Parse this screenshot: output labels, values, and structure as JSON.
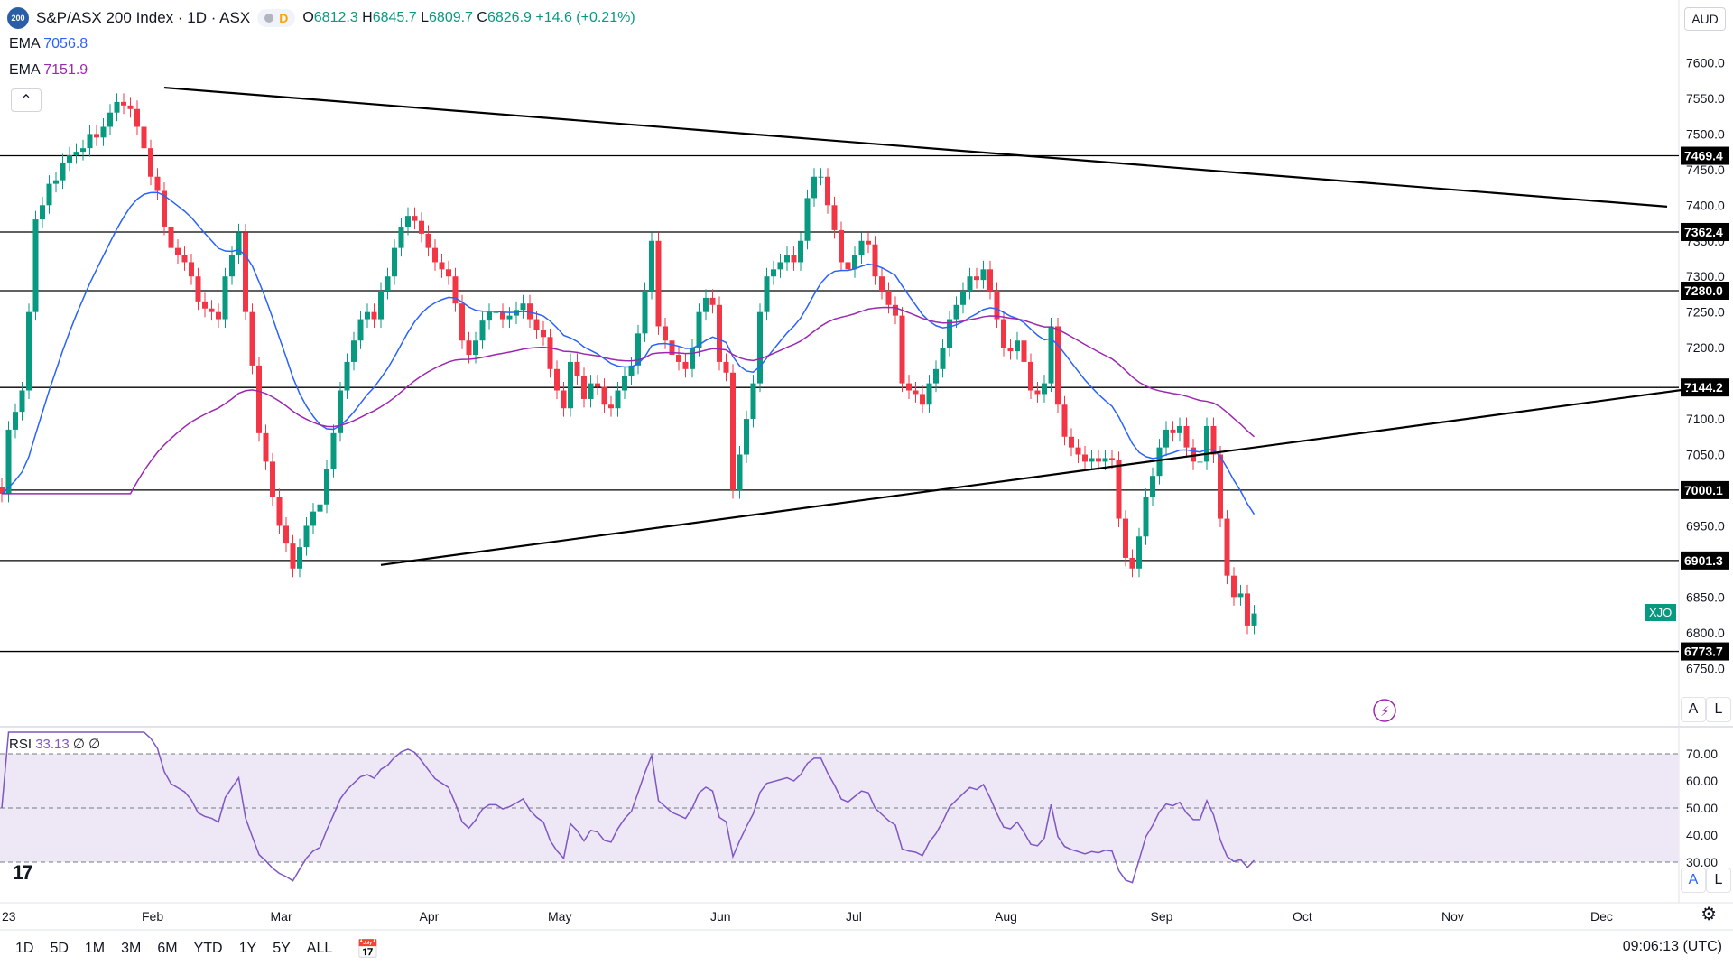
{
  "header": {
    "logo_text": "200",
    "symbol": "S&P/ASX 200 Index · 1D · ASX",
    "pill_letter": "D",
    "ohlc": {
      "o": "6812.3",
      "h": "6845.7",
      "l": "6809.7",
      "c": "6826.9",
      "chg": "+14.6 (+0.21%)"
    },
    "ema1_label": "EMA",
    "ema1_value": "7056.8",
    "ema2_label": "EMA",
    "ema2_value": "7151.9",
    "collapse_icon": "chevron-up-icon"
  },
  "currency": "AUD",
  "last_tag": "XJO",
  "colors": {
    "up": "#089981",
    "down": "#f23645",
    "ema_fast": "#2962ff",
    "ema_slow": "#9c27b0",
    "rsi": "#7e57c2",
    "rsi_band": "#ede7f6"
  },
  "rsi": {
    "label": "RSI",
    "value": "33.13",
    "extra": "∅ ∅"
  },
  "bottom": {
    "timeframes": [
      "1D",
      "5D",
      "1M",
      "3M",
      "6M",
      "YTD",
      "1Y",
      "5Y",
      "ALL"
    ],
    "clock": "09:06:13 (UTC)",
    "scale_a": "A",
    "scale_l": "L"
  },
  "chart_data": {
    "type": "candlestick",
    "title": "S&P/ASX 200 Index · 1D · ASX",
    "ylim": [
      6725,
      7650
    ],
    "y_ticks": [
      6750,
      6800,
      6850,
      6900,
      6950,
      7000,
      7050,
      7100,
      7150,
      7200,
      7250,
      7300,
      7350,
      7400,
      7450,
      7500,
      7550,
      7600
    ],
    "y_tick_labels": [
      "6750.0",
      "6800.0",
      "6850.0",
      "6900.0",
      "6950.0",
      "7000.0",
      "7050.0",
      "7100.0",
      "7150.0",
      "7200.0",
      "7250.0",
      "7300.0",
      "7350.0",
      "7400.0",
      "7450.0",
      "7500.0",
      "7550.0",
      "7600.0"
    ],
    "x_labels": [
      "23",
      "Feb",
      "Mar",
      "Apr",
      "May",
      "Jun",
      "Jul",
      "Aug",
      "Sep",
      "Oct",
      "Nov",
      "Dec"
    ],
    "x_label_index": [
      0,
      22,
      41,
      63,
      82,
      106,
      126,
      148,
      171,
      192,
      214,
      236
    ],
    "horizontal_levels": [
      {
        "value": 7469.4,
        "label": "7469.4"
      },
      {
        "value": 7362.4,
        "label": "7362.4"
      },
      {
        "value": 7280.0,
        "label": "7280.0"
      },
      {
        "value": 7144.2,
        "label": "7144.2"
      },
      {
        "value": 7000.1,
        "label": "7000.1"
      },
      {
        "value": 6901.3,
        "label": "6901.3"
      },
      {
        "value": 6773.7,
        "label": "6773.7"
      }
    ],
    "trendlines": [
      {
        "x1": 24,
        "y1": 7565,
        "x2": 246,
        "y2": 7398
      },
      {
        "x1": 56,
        "y1": 6895,
        "x2": 250,
        "y2": 7143
      }
    ],
    "closes": [
      6995,
      7085,
      7110,
      7140,
      7250,
      7380,
      7400,
      7430,
      7435,
      7460,
      7470,
      7475,
      7480,
      7500,
      7495,
      7510,
      7530,
      7545,
      7540,
      7535,
      7510,
      7480,
      7440,
      7420,
      7370,
      7340,
      7330,
      7320,
      7300,
      7265,
      7255,
      7250,
      7240,
      7300,
      7330,
      7362,
      7250,
      7175,
      7080,
      7040,
      6990,
      6950,
      6925,
      6890,
      6920,
      6950,
      6970,
      6980,
      7030,
      7080,
      7140,
      7180,
      7210,
      7240,
      7250,
      7240,
      7280,
      7300,
      7340,
      7370,
      7385,
      7378,
      7360,
      7340,
      7320,
      7310,
      7300,
      7262,
      7210,
      7190,
      7210,
      7238,
      7250,
      7250,
      7240,
      7245,
      7253,
      7262,
      7240,
      7225,
      7215,
      7170,
      7140,
      7115,
      7180,
      7160,
      7128,
      7150,
      7145,
      7120,
      7115,
      7140,
      7160,
      7175,
      7220,
      7280,
      7350,
      7230,
      7210,
      7190,
      7180,
      7170,
      7200,
      7250,
      7270,
      7260,
      7180,
      7165,
      7000,
      7050,
      7100,
      7150,
      7250,
      7300,
      7310,
      7320,
      7330,
      7320,
      7350,
      7410,
      7440,
      7440,
      7400,
      7365,
      7320,
      7310,
      7330,
      7350,
      7345,
      7300,
      7280,
      7260,
      7245,
      7150,
      7140,
      7135,
      7120,
      7150,
      7170,
      7200,
      7240,
      7260,
      7280,
      7300,
      7295,
      7310,
      7280,
      7240,
      7200,
      7195,
      7210,
      7180,
      7140,
      7135,
      7150,
      7230,
      7120,
      7075,
      7060,
      7050,
      7040,
      7045,
      7040,
      7045,
      7042,
      6960,
      6905,
      6890,
      6935,
      6990,
      7020,
      7060,
      7085,
      7080,
      7090,
      7060,
      7040,
      7040,
      7090,
      7050,
      6960,
      6880,
      6850,
      6855,
      6810,
      6826.9
    ],
    "ema_fast_value": 7056.8,
    "ema_slow_value": 7151.9,
    "rsi_ylim": [
      20,
      75
    ],
    "rsi_ticks": [
      30,
      40,
      50,
      60,
      70
    ],
    "rsi_tick_labels": [
      "30.00",
      "40.00",
      "50.00",
      "60.00",
      "70.00"
    ],
    "rsi_levels": [
      30,
      50,
      70
    ],
    "rsi_last": 33.13
  }
}
